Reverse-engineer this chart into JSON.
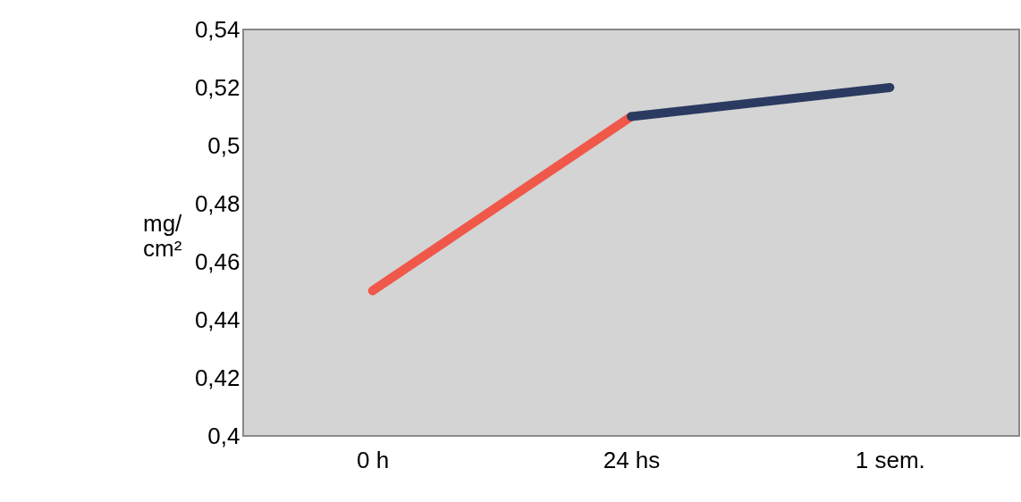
{
  "chart_data": {
    "type": "line",
    "ylabel": "mg/\ncm²",
    "categories": [
      "0 h",
      "24 hs",
      "1 sem."
    ],
    "series": [
      {
        "color": "#f0584a",
        "values": [
          0.45,
          0.51,
          null
        ]
      },
      {
        "color": "#2b3a60",
        "values": [
          null,
          0.51,
          0.52
        ]
      }
    ],
    "ylim": [
      0.4,
      0.54
    ],
    "yticks": [
      {
        "value": 0.4,
        "label": "0,4"
      },
      {
        "value": 0.42,
        "label": "0,42"
      },
      {
        "value": 0.44,
        "label": "0,44"
      },
      {
        "value": 0.46,
        "label": "0,46"
      },
      {
        "value": 0.48,
        "label": "0,48"
      },
      {
        "value": 0.5,
        "label": "0,5"
      },
      {
        "value": 0.52,
        "label": "0,52"
      },
      {
        "value": 0.54,
        "label": "0,54"
      }
    ],
    "grid": false,
    "marker": "none",
    "line_style": "solid"
  }
}
